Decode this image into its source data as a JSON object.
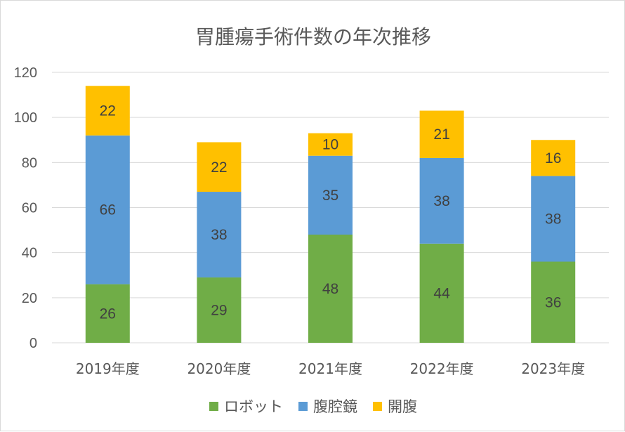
{
  "chart_data": {
    "type": "bar",
    "stacked": true,
    "title": "胃腫瘍手術件数の年次推移",
    "xlabel": "",
    "ylabel": "",
    "categories": [
      "2019年度",
      "2020年度",
      "2021年度",
      "2022年度",
      "2023年度"
    ],
    "ylim": [
      0,
      120
    ],
    "yticks": [
      "0",
      "20",
      "40",
      "60",
      "80",
      "100",
      "120"
    ],
    "grid": true,
    "legend_position": "bottom",
    "series": [
      {
        "name": "ロボット",
        "values": [
          26,
          29,
          48,
          44,
          36
        ],
        "color": "#70ad47"
      },
      {
        "name": "腹腔鏡",
        "values": [
          66,
          38,
          35,
          38,
          38
        ],
        "color": "#5b9bd5"
      },
      {
        "name": "開腹",
        "values": [
          22,
          22,
          10,
          21,
          16
        ],
        "color": "#ffc000"
      }
    ]
  }
}
